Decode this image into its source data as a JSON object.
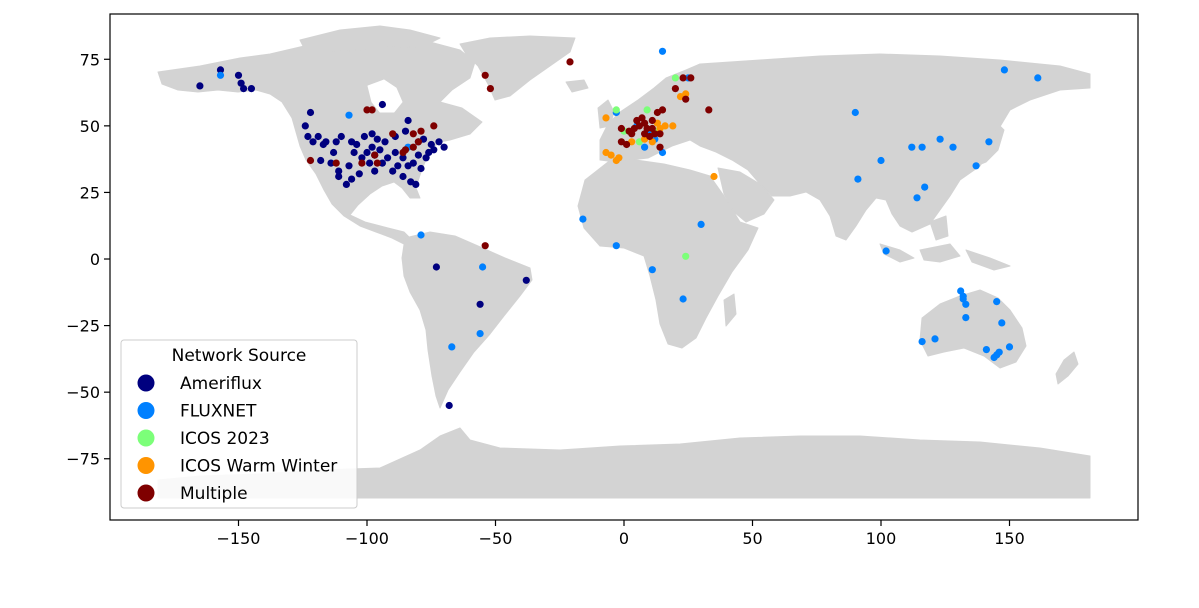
{
  "chart_data": {
    "type": "scatter",
    "xlim": [
      -200,
      200
    ],
    "ylim": [
      -98,
      92
    ],
    "x_ticks": [
      -150,
      -100,
      -50,
      0,
      50,
      100,
      150
    ],
    "y_ticks": [
      75,
      50,
      25,
      0,
      -25,
      -50,
      -75
    ],
    "x_tick_labels": [
      "−150",
      "−100",
      "−50",
      "0",
      "50",
      "100",
      "150"
    ],
    "y_tick_labels": [
      "75",
      "50",
      "25",
      "0",
      "−25",
      "−50",
      "−75"
    ],
    "basemap": "world land masses (light gray)",
    "legend": {
      "title": "Network Source",
      "placement": "lower-left",
      "entries": [
        {
          "label": "Ameriflux",
          "color": "#00007f"
        },
        {
          "label": "FLUXNET",
          "color": "#0080ff"
        },
        {
          "label": "ICOS 2023",
          "color": "#7cff79"
        },
        {
          "label": "ICOS Warm Winter",
          "color": "#ff9400"
        },
        {
          "label": "Multiple",
          "color": "#7f0000"
        }
      ]
    },
    "series": [
      {
        "name": "Ameriflux",
        "color": "#00007f",
        "points": [
          [
            -165,
            65
          ],
          [
            -157,
            71
          ],
          [
            -150,
            69
          ],
          [
            -149,
            66
          ],
          [
            -148,
            64
          ],
          [
            -145,
            64
          ],
          [
            -124,
            50
          ],
          [
            -122,
            55
          ],
          [
            -123,
            46
          ],
          [
            -121,
            44
          ],
          [
            -119,
            46
          ],
          [
            -116,
            44
          ],
          [
            -112,
            44
          ],
          [
            -110,
            46
          ],
          [
            -106,
            44
          ],
          [
            -101,
            46
          ],
          [
            -98,
            47
          ],
          [
            -96,
            45
          ],
          [
            -94,
            58
          ],
          [
            -89,
            46
          ],
          [
            -85,
            48
          ],
          [
            -84,
            52
          ],
          [
            -80,
            44
          ],
          [
            -78,
            45
          ],
          [
            -75,
            43
          ],
          [
            -72,
            44
          ],
          [
            -118,
            37
          ],
          [
            -114,
            36
          ],
          [
            -111,
            33
          ],
          [
            -107,
            35
          ],
          [
            -105,
            40
          ],
          [
            -102,
            38
          ],
          [
            -99,
            36
          ],
          [
            -97,
            39
          ],
          [
            -95,
            41
          ],
          [
            -92,
            38
          ],
          [
            -89,
            40
          ],
          [
            -86,
            38
          ],
          [
            -84,
            35
          ],
          [
            -82,
            36
          ],
          [
            -79,
            34
          ],
          [
            -77,
            38
          ],
          [
            -90,
            33
          ],
          [
            -86,
            31
          ],
          [
            -83,
            29
          ],
          [
            -81,
            28
          ],
          [
            -97,
            33
          ],
          [
            -103,
            32
          ],
          [
            -106,
            30
          ],
          [
            -108,
            28
          ],
          [
            -111,
            31
          ],
          [
            -94,
            36
          ],
          [
            -88,
            35
          ],
          [
            -98,
            42
          ],
          [
            -93,
            44
          ],
          [
            -100,
            40
          ],
          [
            -104,
            43
          ],
          [
            -113,
            40
          ],
          [
            -117,
            43
          ],
          [
            -80,
            39
          ],
          [
            -74,
            41
          ],
          [
            -70,
            42
          ],
          [
            -76,
            40
          ],
          [
            -73,
            -3
          ],
          [
            -56,
            -17
          ],
          [
            -68,
            -55
          ],
          [
            -38,
            -8
          ]
        ]
      },
      {
        "name": "FLUXNET",
        "color": "#0080ff",
        "points": [
          [
            -157,
            69
          ],
          [
            -107,
            54
          ],
          [
            -84,
            42
          ],
          [
            -79,
            9
          ],
          [
            -16,
            15
          ],
          [
            -3,
            5
          ],
          [
            11,
            -4
          ],
          [
            23,
            -15
          ],
          [
            30,
            13
          ],
          [
            -55,
            -3
          ],
          [
            -56,
            -28
          ],
          [
            -67,
            -33
          ],
          [
            15,
            78
          ],
          [
            25,
            68
          ],
          [
            5,
            50
          ],
          [
            10,
            47
          ],
          [
            8,
            42
          ],
          [
            12,
            45
          ],
          [
            15,
            40
          ],
          [
            90,
            55
          ],
          [
            100,
            37
          ],
          [
            91,
            30
          ],
          [
            112,
            42
          ],
          [
            116,
            42
          ],
          [
            123,
            45
          ],
          [
            128,
            42
          ],
          [
            117,
            27
          ],
          [
            114,
            23
          ],
          [
            102,
            3
          ],
          [
            137,
            35
          ],
          [
            142,
            44
          ],
          [
            148,
            71
          ],
          [
            161,
            68
          ],
          [
            131,
            -12
          ],
          [
            132,
            -14
          ],
          [
            132,
            -15
          ],
          [
            133,
            -17
          ],
          [
            133,
            -22
          ],
          [
            145,
            -16
          ],
          [
            147,
            -24
          ],
          [
            116,
            -31
          ],
          [
            121,
            -30
          ],
          [
            141,
            -34
          ],
          [
            144,
            -37
          ],
          [
            145,
            -36
          ],
          [
            146,
            -35
          ],
          [
            150,
            -33
          ],
          [
            -3,
            55
          ]
        ]
      },
      {
        "name": "ICOS 2023",
        "color": "#7cff79",
        "points": [
          [
            -3,
            56
          ],
          [
            20,
            68
          ],
          [
            9,
            56
          ],
          [
            12,
            48
          ],
          [
            0,
            48
          ],
          [
            24,
            1
          ],
          [
            6,
            44
          ]
        ]
      },
      {
        "name": "ICOS Warm Winter",
        "color": "#ff9400",
        "points": [
          [
            -7,
            53
          ],
          [
            -7,
            40
          ],
          [
            -5,
            39
          ],
          [
            -3,
            37
          ],
          [
            -2,
            38
          ],
          [
            22,
            61
          ],
          [
            24,
            62
          ],
          [
            3,
            44
          ],
          [
            8,
            45
          ],
          [
            12,
            47
          ],
          [
            14,
            49
          ],
          [
            16,
            50
          ],
          [
            19,
            50
          ],
          [
            35,
            31
          ],
          [
            11,
            44
          ],
          [
            13,
            51
          ]
        ]
      },
      {
        "name": "Multiple",
        "color": "#7f0000",
        "points": [
          [
            -54,
            69
          ],
          [
            -52,
            64
          ],
          [
            -21,
            74
          ],
          [
            -54,
            5
          ],
          [
            -74,
            50
          ],
          [
            -79,
            48
          ],
          [
            -82,
            47
          ],
          [
            -85,
            41
          ],
          [
            -96,
            36
          ],
          [
            -100,
            56
          ],
          [
            -97,
            39
          ],
          [
            -90,
            47
          ],
          [
            -82,
            42
          ],
          [
            -86,
            40
          ],
          [
            -102,
            36
          ],
          [
            -98,
            56
          ],
          [
            -122,
            37
          ],
          [
            -112,
            36
          ],
          [
            -80,
            44
          ],
          [
            23,
            68
          ],
          [
            26,
            68
          ],
          [
            20,
            64
          ],
          [
            24,
            60
          ],
          [
            33,
            56
          ],
          [
            5,
            52
          ],
          [
            8,
            51
          ],
          [
            11,
            52
          ],
          [
            13,
            55
          ],
          [
            15,
            56
          ],
          [
            3,
            47
          ],
          [
            8,
            47
          ],
          [
            12,
            47
          ],
          [
            1,
            43
          ],
          [
            14,
            42
          ],
          [
            -1,
            44
          ],
          [
            4,
            49
          ],
          [
            11,
            49
          ],
          [
            6,
            50
          ],
          [
            14,
            47
          ],
          [
            10,
            46
          ],
          [
            2,
            48
          ],
          [
            7,
            53
          ],
          [
            -1,
            49
          ],
          [
            9,
            49
          ]
        ]
      }
    ]
  }
}
